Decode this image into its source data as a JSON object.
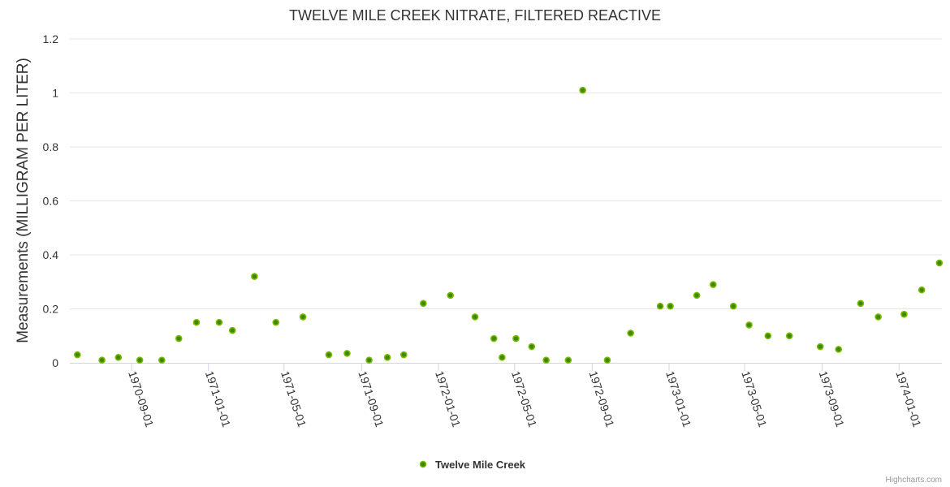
{
  "chart_data": {
    "type": "scatter",
    "title": "TWELVE MILE CREEK NITRATE, FILTERED REACTIVE",
    "xlabel": "",
    "ylabel": "Measurements (MILLIGRAM PER LITER)",
    "ylim": [
      0,
      1.2
    ],
    "yticks": [
      0,
      0.2,
      0.4,
      0.6,
      0.8,
      1,
      1.2
    ],
    "ytick_labels": [
      "0",
      "0.2",
      "0.4",
      "0.6",
      "0.8",
      "1",
      "1.2"
    ],
    "xlim": [
      "1970-05-26",
      "1974-03-10"
    ],
    "xticks": [
      "1970-09-01",
      "1971-01-01",
      "1971-05-01",
      "1971-09-01",
      "1972-01-01",
      "1972-05-01",
      "1972-09-01",
      "1973-01-01",
      "1973-05-01",
      "1973-09-01",
      "1974-01-01"
    ],
    "grid": true,
    "legend_position": "bottom-center",
    "series": [
      {
        "name": "Twelve Mile Creek",
        "color": "#5a9e00",
        "points": [
          [
            "1970-06-07",
            0.03
          ],
          [
            "1970-07-16",
            0.01
          ],
          [
            "1970-08-11",
            0.02
          ],
          [
            "1970-09-14",
            0.01
          ],
          [
            "1970-10-19",
            0.01
          ],
          [
            "1970-11-15",
            0.09
          ],
          [
            "1970-12-13",
            0.15
          ],
          [
            "1971-01-18",
            0.15
          ],
          [
            "1971-02-08",
            0.12
          ],
          [
            "1971-03-15",
            0.32
          ],
          [
            "1971-04-18",
            0.15
          ],
          [
            "1971-05-31",
            0.17
          ],
          [
            "1971-07-11",
            0.03
          ],
          [
            "1971-08-09",
            0.035
          ],
          [
            "1971-09-13",
            0.01
          ],
          [
            "1971-10-12",
            0.02
          ],
          [
            "1971-11-07",
            0.03
          ],
          [
            "1971-12-08",
            0.22
          ],
          [
            "1972-01-20",
            0.25
          ],
          [
            "1972-02-28",
            0.17
          ],
          [
            "1972-03-29",
            0.09
          ],
          [
            "1972-04-11",
            0.02
          ],
          [
            "1972-05-03",
            0.09
          ],
          [
            "1972-05-28",
            0.06
          ],
          [
            "1972-06-20",
            0.01
          ],
          [
            "1972-07-25",
            0.01
          ],
          [
            "1972-08-17",
            1.01
          ],
          [
            "1972-09-25",
            0.01
          ],
          [
            "1972-11-01",
            0.11
          ],
          [
            "1972-12-18",
            0.21
          ],
          [
            "1973-01-03",
            0.21
          ],
          [
            "1973-02-14",
            0.25
          ],
          [
            "1973-03-12",
            0.29
          ],
          [
            "1973-04-13",
            0.21
          ],
          [
            "1973-05-08",
            0.14
          ],
          [
            "1973-06-07",
            0.1
          ],
          [
            "1973-07-11",
            0.1
          ],
          [
            "1973-08-29",
            0.06
          ],
          [
            "1973-09-27",
            0.05
          ],
          [
            "1973-11-01",
            0.22
          ],
          [
            "1973-11-29",
            0.17
          ],
          [
            "1974-01-09",
            0.18
          ],
          [
            "1974-02-06",
            0.27
          ],
          [
            "1974-03-06",
            0.37
          ]
        ]
      }
    ],
    "credits": "Highcharts.com"
  }
}
